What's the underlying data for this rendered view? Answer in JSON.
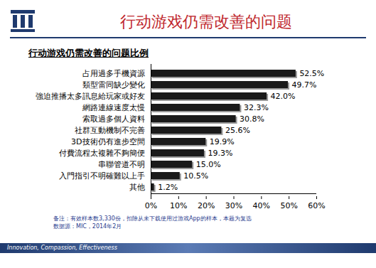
{
  "page": {
    "heading": "行动游戏仍需改善的问题",
    "notes": [
      "备注：有效样本数3,330份，扣除从未下载使用过游戏App的样本，本题为复选",
      "数据源：MIC，2014年2月"
    ],
    "footer": "Innovation, Compassion, Effectiveness"
  },
  "chart_data": {
    "type": "bar",
    "orientation": "horizontal",
    "title": "行动游戏仍需改善的问题比例",
    "categories": [
      "占用過多手機資源",
      "類型雷同缺少變化",
      "強迫推播太多訊息給玩家或好友",
      "網路連線速度太慢",
      "索取過多個人資料",
      "社群互動機制不完善",
      "3D技術仍有進步空間",
      "付費流程太複雜不夠簡便",
      "串聯管道不明",
      "入門指引不明確難以上手",
      "其他"
    ],
    "values": [
      52.5,
      49.7,
      42.0,
      32.3,
      30.8,
      25.6,
      19.9,
      19.3,
      15.0,
      10.5,
      1.2
    ],
    "value_labels": [
      "52.5%",
      "49.7%",
      "42.0%",
      "32.3%",
      "30.8%",
      "25.6%",
      "19.9%",
      "19.3%",
      "15.0%",
      "10.5%",
      "1.2%"
    ],
    "color": "#1a1a1a",
    "data_labels": true,
    "grid": false,
    "xlim": [
      0,
      60
    ],
    "xticks": [
      {
        "value": 0,
        "label": "0%"
      },
      {
        "value": 10,
        "label": "10%"
      },
      {
        "value": 20,
        "label": "20%"
      },
      {
        "value": 30,
        "label": "30%"
      },
      {
        "value": 40,
        "label": "40%"
      },
      {
        "value": 50,
        "label": "50%"
      },
      {
        "value": 60,
        "label": "60%"
      }
    ]
  }
}
